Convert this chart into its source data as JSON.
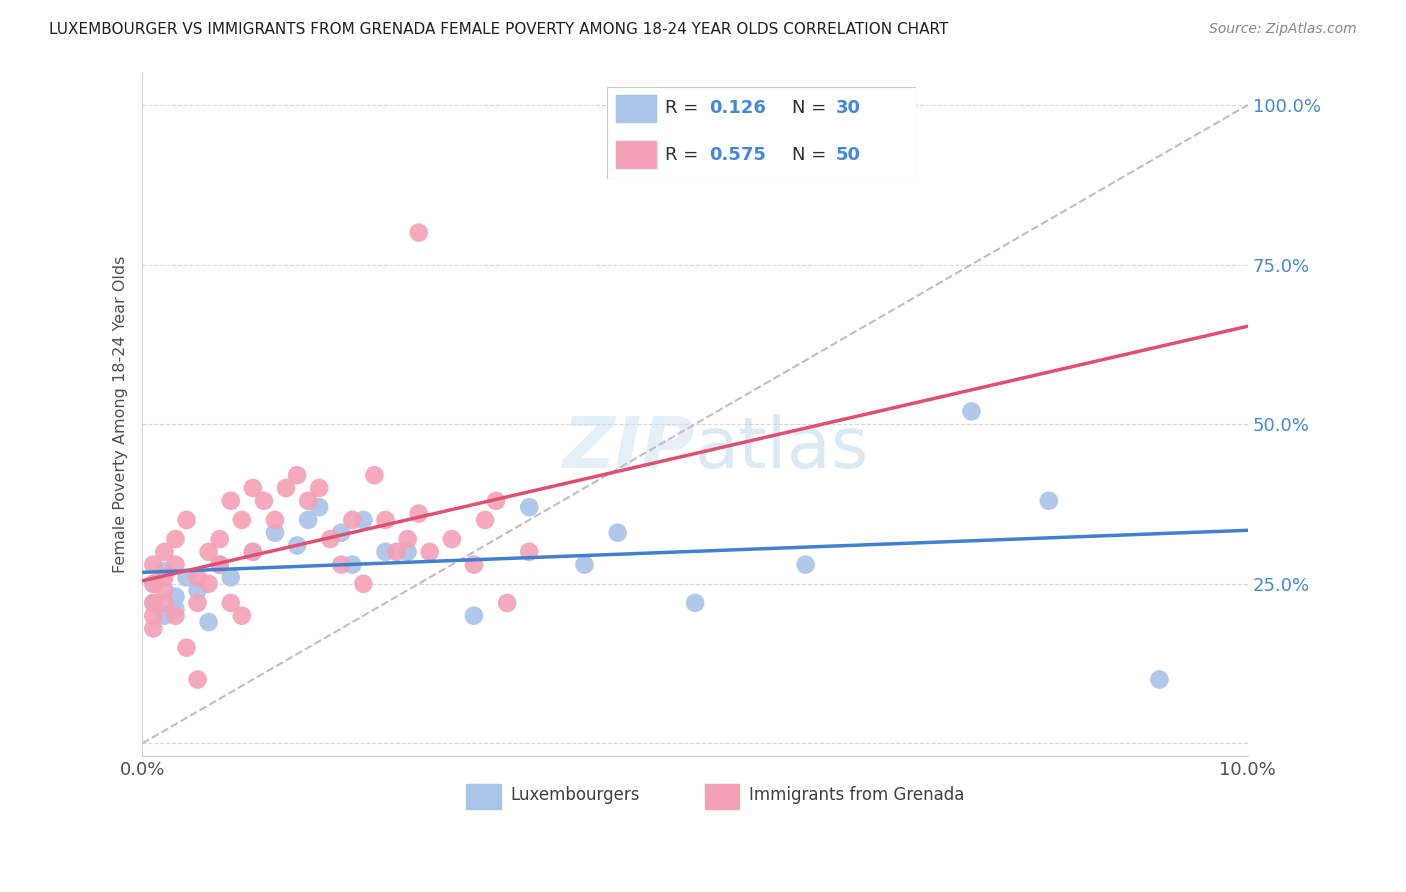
{
  "title": "LUXEMBOURGER VS IMMIGRANTS FROM GRENADA FEMALE POVERTY AMONG 18-24 YEAR OLDS CORRELATION CHART",
  "source": "Source: ZipAtlas.com",
  "ylabel": "Female Poverty Among 18-24 Year Olds",
  "xlim": [
    0.0,
    0.1
  ],
  "ylim": [
    -0.02,
    1.05
  ],
  "xticks": [
    0.0,
    0.02,
    0.04,
    0.06,
    0.08,
    0.1
  ],
  "xtick_labels": [
    "0.0%",
    "",
    "",
    "",
    "",
    "10.0%"
  ],
  "yticks": [
    0.0,
    0.25,
    0.5,
    0.75,
    1.0
  ],
  "ytick_labels": [
    "",
    "25.0%",
    "50.0%",
    "75.0%",
    "100.0%"
  ],
  "blue_R": 0.126,
  "blue_N": 30,
  "pink_R": 0.575,
  "pink_N": 50,
  "blue_color": "#a8c4e8",
  "pink_color": "#f4a0b5",
  "blue_line_color": "#4080d0",
  "pink_line_color": "#e05070",
  "blue_text_color": "#4488dd",
  "diag_line_color": "#c8b8cc",
  "watermark_color": "#ddeef8",
  "blue_scatter_x": [
    0.001,
    0.001,
    0.002,
    0.002,
    0.003,
    0.003,
    0.004,
    0.005,
    0.006,
    0.007,
    0.008,
    0.01,
    0.012,
    0.014,
    0.015,
    0.016,
    0.018,
    0.019,
    0.02,
    0.022,
    0.024,
    0.03,
    0.035,
    0.04,
    0.043,
    0.05,
    0.06,
    0.075,
    0.082,
    0.092
  ],
  "blue_scatter_y": [
    0.22,
    0.25,
    0.2,
    0.27,
    0.23,
    0.21,
    0.26,
    0.24,
    0.19,
    0.28,
    0.26,
    0.3,
    0.33,
    0.31,
    0.35,
    0.37,
    0.33,
    0.28,
    0.35,
    0.3,
    0.3,
    0.2,
    0.37,
    0.28,
    0.33,
    0.22,
    0.28,
    0.52,
    0.38,
    0.1
  ],
  "pink_scatter_x": [
    0.001,
    0.001,
    0.001,
    0.001,
    0.001,
    0.002,
    0.002,
    0.002,
    0.002,
    0.003,
    0.003,
    0.003,
    0.004,
    0.004,
    0.005,
    0.005,
    0.005,
    0.006,
    0.006,
    0.007,
    0.007,
    0.008,
    0.008,
    0.009,
    0.009,
    0.01,
    0.01,
    0.011,
    0.012,
    0.013,
    0.014,
    0.015,
    0.016,
    0.017,
    0.018,
    0.019,
    0.02,
    0.021,
    0.022,
    0.023,
    0.024,
    0.025,
    0.026,
    0.028,
    0.03,
    0.031,
    0.032,
    0.033,
    0.035,
    0.025
  ],
  "pink_scatter_y": [
    0.22,
    0.25,
    0.18,
    0.2,
    0.28,
    0.3,
    0.24,
    0.22,
    0.26,
    0.32,
    0.28,
    0.2,
    0.35,
    0.15,
    0.22,
    0.26,
    0.1,
    0.3,
    0.25,
    0.32,
    0.28,
    0.38,
    0.22,
    0.35,
    0.2,
    0.4,
    0.3,
    0.38,
    0.35,
    0.4,
    0.42,
    0.38,
    0.4,
    0.32,
    0.28,
    0.35,
    0.25,
    0.42,
    0.35,
    0.3,
    0.32,
    0.36,
    0.3,
    0.32,
    0.28,
    0.35,
    0.38,
    0.22,
    0.3,
    0.8
  ]
}
